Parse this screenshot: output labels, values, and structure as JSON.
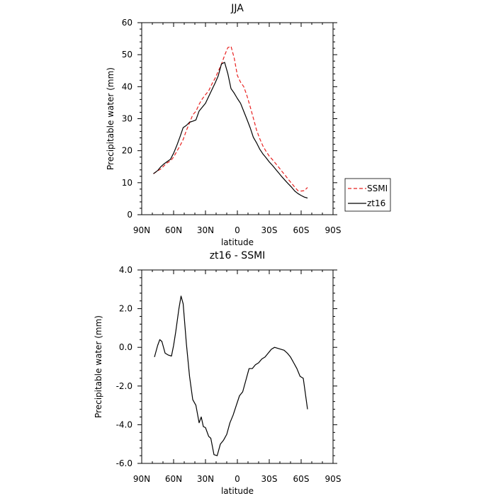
{
  "chart_data": [
    {
      "type": "line",
      "title": "JJA",
      "xlabel": "latitude",
      "ylabel": "Precipitable water (mm)",
      "xlim": [
        90,
        -90
      ],
      "ylim": [
        0,
        60
      ],
      "xticks": [
        90,
        60,
        30,
        0,
        -30,
        -60,
        -90
      ],
      "xtick_labels": [
        "90N",
        "60N",
        "30N",
        "0",
        "30S",
        "60S",
        "90S"
      ],
      "yticks": [
        0,
        10,
        20,
        30,
        40,
        50,
        60
      ],
      "ytick_labels": [
        "0",
        "10",
        "20",
        "30",
        "40",
        "50",
        "60"
      ],
      "grid": false,
      "legend_placement": "right, outside plot",
      "series": [
        {
          "name": "SSMI",
          "color": "#e8201f",
          "dash": "dashed",
          "x": [
            79,
            75,
            72,
            69,
            66,
            63,
            60,
            57,
            54,
            51,
            48,
            45,
            42,
            39,
            36,
            33,
            30,
            27,
            24,
            21,
            18,
            15,
            12,
            9,
            6,
            3,
            0,
            -3,
            -6,
            -9,
            -12,
            -15,
            -18,
            -21,
            -24,
            -27,
            -30,
            -33,
            -36,
            -39,
            -42,
            -45,
            -48,
            -51,
            -54,
            -57,
            -60,
            -63,
            -66
          ],
          "values": [
            12.8,
            13.7,
            14.3,
            15.3,
            16.2,
            16.8,
            18,
            19.8,
            21.5,
            23.5,
            26.3,
            28.7,
            31.2,
            32.3,
            34.5,
            36.2,
            37.5,
            38.7,
            40.8,
            42.6,
            44.8,
            47,
            49.8,
            52.2,
            52.6,
            49,
            43.5,
            41.4,
            40,
            37.2,
            33.8,
            30.2,
            26.5,
            23.8,
            21.5,
            19.8,
            18.3,
            17.2,
            16,
            14.8,
            13.5,
            12.3,
            11,
            9.8,
            8.6,
            7.5,
            7.4,
            7.5,
            8.5
          ]
        },
        {
          "name": "zt16",
          "color": "#000000",
          "dash": "solid",
          "x": [
            79,
            75,
            72,
            69,
            66,
            63,
            60,
            57,
            54,
            51,
            48,
            45,
            42,
            39,
            36,
            33,
            30,
            27,
            24,
            21,
            18,
            15,
            12,
            9,
            6,
            3,
            0,
            -3,
            -6,
            -9,
            -12,
            -15,
            -18,
            -21,
            -24,
            -27,
            -30,
            -33,
            -36,
            -39,
            -42,
            -45,
            -48,
            -51,
            -54,
            -57,
            -60,
            -63,
            -66
          ],
          "values": [
            12.8,
            13.8,
            15,
            15.9,
            16.6,
            17.3,
            19.2,
            21.6,
            24.3,
            27.2,
            27.9,
            28.9,
            29.2,
            29.6,
            32.4,
            33.6,
            34.8,
            36.9,
            39,
            41.1,
            43.4,
            47.1,
            47.6,
            44.1,
            39.4,
            38,
            36.3,
            34.8,
            32.3,
            29.8,
            27.2,
            24.2,
            22.5,
            20.5,
            19,
            17.8,
            16.5,
            15.4,
            14.2,
            13,
            11.8,
            10.7,
            9.6,
            8.6,
            7.4,
            6.6,
            6,
            5.5,
            5.2
          ]
        }
      ]
    },
    {
      "type": "line",
      "title": "zt16 - SSMI",
      "xlabel": "latitude",
      "ylabel": "Precipitable water (mm)",
      "xlim": [
        90,
        -90
      ],
      "ylim": [
        -6,
        4
      ],
      "xticks": [
        90,
        60,
        30,
        0,
        -30,
        -60,
        -90
      ],
      "xtick_labels": [
        "90N",
        "60N",
        "30N",
        "0",
        "30S",
        "60S",
        "90S"
      ],
      "yticks": [
        -6,
        -4,
        -2,
        0,
        2,
        4
      ],
      "ytick_labels": [
        "-6.0",
        "-4.0",
        "-2.0",
        "0.0",
        "2.0",
        "4.0"
      ],
      "grid": false,
      "series": [
        {
          "color": "#000000",
          "dash": "solid",
          "x": [
            78,
            75,
            73,
            71,
            68,
            65,
            62,
            60,
            58,
            55,
            53,
            51,
            48,
            45,
            42,
            39,
            36,
            34,
            32,
            30,
            27,
            25,
            22,
            19,
            16,
            13,
            10,
            7,
            4,
            1,
            -2,
            -5,
            -8,
            -11,
            -14,
            -17,
            -20,
            -23,
            -26,
            -29,
            -32,
            -35,
            -38,
            -41,
            -44,
            -47,
            -50,
            -53,
            -56,
            -59,
            -62,
            -64,
            -66
          ],
          "values": [
            -0.5,
            0.1,
            0.4,
            0.3,
            -0.3,
            -0.4,
            -0.45,
            0.1,
            0.8,
            2,
            2.65,
            2.25,
            0.2,
            -1.5,
            -2.7,
            -3,
            -3.9,
            -3.6,
            -4.1,
            -4.15,
            -4.6,
            -4.7,
            -5.55,
            -5.6,
            -5,
            -4.8,
            -4.5,
            -3.9,
            -3.5,
            -3.0,
            -2.5,
            -2.3,
            -1.7,
            -1.1,
            -1.1,
            -0.9,
            -0.8,
            -0.6,
            -0.5,
            -0.3,
            -0.1,
            0,
            -0.05,
            -0.1,
            -0.15,
            -0.3,
            -0.5,
            -0.8,
            -1.1,
            -1.5,
            -1.6,
            -2.4,
            -3.2
          ]
        }
      ]
    }
  ]
}
